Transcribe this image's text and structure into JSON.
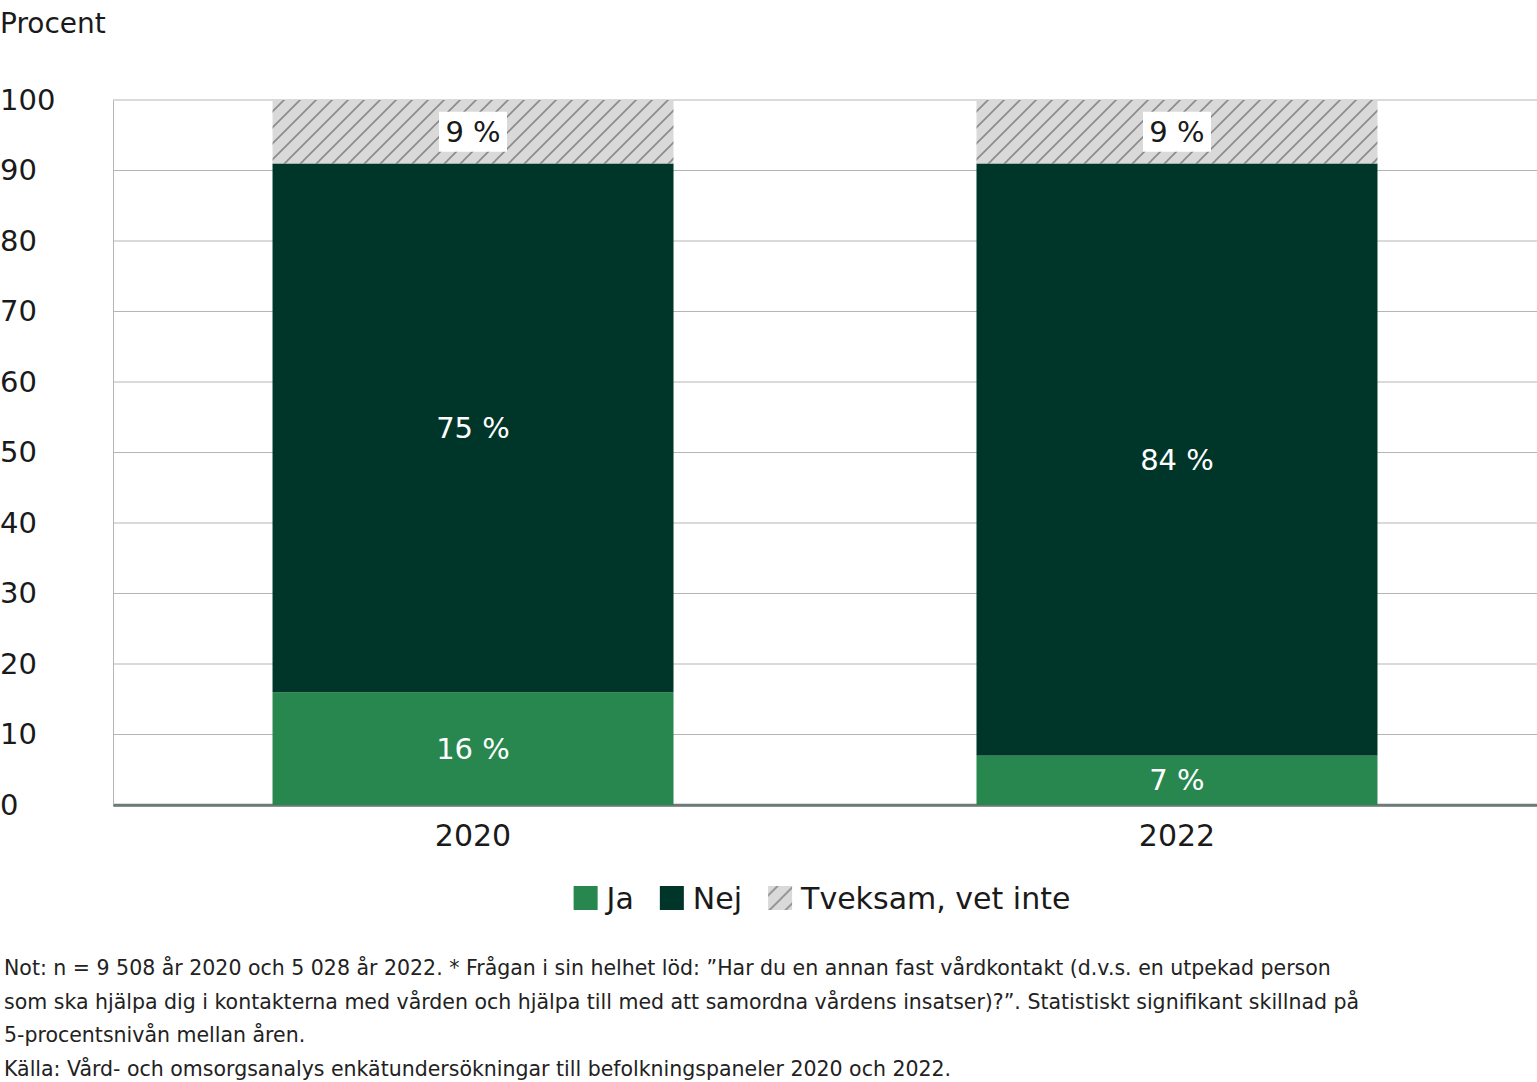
{
  "chart_data": {
    "type": "bar",
    "stacked": true,
    "y_label": "Procent",
    "categories": [
      "2020",
      "2022"
    ],
    "series": [
      {
        "name": "Ja",
        "color": "#27874f",
        "values": [
          16,
          7
        ],
        "value_labels": [
          "16 %",
          "7 %"
        ]
      },
      {
        "name": "Nej",
        "color": "#00362a",
        "values": [
          75,
          84
        ],
        "value_labels": [
          "75 %",
          "84 %"
        ]
      },
      {
        "name": "Tveksam, vet inte",
        "color": "#d9d9d9",
        "values": [
          9,
          9
        ],
        "value_labels": [
          "9 %",
          "9 %"
        ]
      }
    ],
    "ylim": [
      0,
      100
    ],
    "yticks": [
      0,
      10,
      20,
      30,
      40,
      50,
      60,
      70,
      80,
      90,
      100
    ],
    "grid": true,
    "data_labels": true,
    "legend": "bottom",
    "annotations": [
      "Not: n = 9 508 år 2020 och 5 028 år 2022. * Frågan i sin helhet löd: ”Har du en annan fast vårdkontakt (d.v.s. en utpekad person",
      "som ska hjälpa dig i kontakterna med vården och hjälpa till med att samordna vårdens insatser)?”. Statistiskt signifikant skillnad på",
      "5-procentsnivån mellan åren.",
      "Källa: Vård- och omsorgsanalys enkätundersökningar till befolkningspaneler 2020 och 2022."
    ]
  }
}
